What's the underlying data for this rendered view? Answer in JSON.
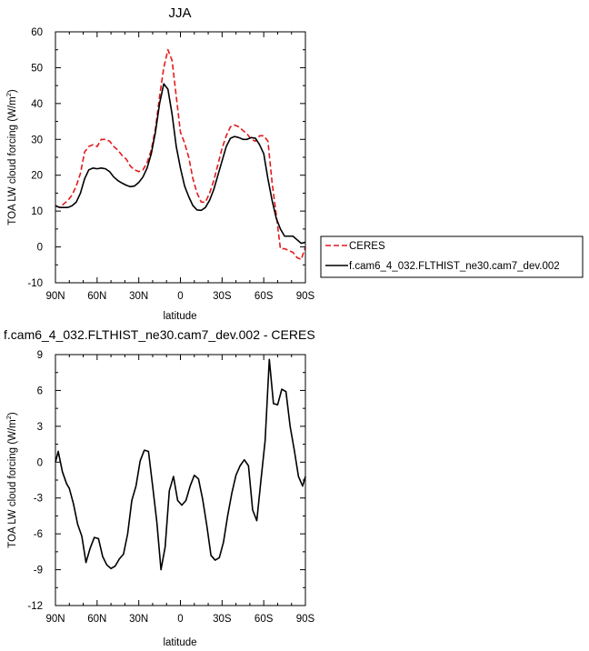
{
  "chart_data": [
    {
      "type": "line",
      "title": "JJA",
      "xlabel": "latitude",
      "ylabel": "TOA LW cloud forcing (W/m²)",
      "xlim": [
        -90,
        90
      ],
      "ylim": [
        -10,
        60
      ],
      "x_ticks": [
        -90,
        -60,
        -30,
        0,
        30,
        60,
        90
      ],
      "x_tick_labels": [
        "90N",
        "60N",
        "30N",
        "0",
        "30S",
        "60S",
        "90S"
      ],
      "y_ticks": [
        -10,
        0,
        10,
        20,
        30,
        40,
        50,
        60
      ],
      "y_tick_labels": [
        "-10",
        "0",
        "10",
        "20",
        "30",
        "40",
        "50",
        "60"
      ],
      "legend_position": "right, outside plot",
      "series": [
        {
          "name": "CERES",
          "color": "#e41a1c",
          "dash": "dashed",
          "x": [
            -90,
            -87,
            -84,
            -81,
            -78,
            -75,
            -72,
            -69,
            -66,
            -63,
            -60,
            -57,
            -54,
            -51,
            -48,
            -45,
            -42,
            -39,
            -36,
            -33,
            -30,
            -27,
            -24,
            -21,
            -18,
            -15,
            -12,
            -9,
            -6,
            -3,
            0,
            3,
            6,
            9,
            12,
            15,
            18,
            21,
            24,
            27,
            30,
            33,
            36,
            39,
            42,
            45,
            48,
            51,
            54,
            57,
            60,
            63,
            66,
            69,
            72,
            75,
            78,
            81,
            84,
            87,
            90
          ],
          "y": [
            11.5,
            11,
            12,
            13,
            14.5,
            17,
            20.5,
            26.5,
            28,
            28.5,
            28,
            30,
            30,
            29.5,
            28,
            27,
            25.5,
            24.5,
            22.5,
            21.5,
            21,
            21.5,
            23.5,
            27,
            33,
            42,
            50,
            55,
            52,
            42,
            32,
            29,
            25,
            19,
            15,
            12.5,
            12.5,
            15,
            18.5,
            23,
            27.5,
            31,
            33.5,
            34,
            33.5,
            32.5,
            31.5,
            30,
            29.5,
            31,
            31,
            29.5,
            18,
            9,
            -0.5,
            -0.5,
            -1,
            -1.5,
            -3,
            -3.5,
            0
          ]
        },
        {
          "name": "f.cam6_4_032.FLTHIST_ne30.cam7_dev.002",
          "color": "#000000",
          "dash": "solid",
          "x": [
            -90,
            -87,
            -84,
            -81,
            -78,
            -75,
            -72,
            -69,
            -66,
            -63,
            -60,
            -57,
            -54,
            -51,
            -48,
            -45,
            -42,
            -39,
            -36,
            -33,
            -30,
            -27,
            -24,
            -21,
            -18,
            -15,
            -12,
            -9,
            -6,
            -3,
            0,
            3,
            6,
            9,
            12,
            15,
            18,
            21,
            24,
            27,
            30,
            33,
            36,
            39,
            42,
            45,
            48,
            51,
            54,
            57,
            60,
            63,
            66,
            69,
            72,
            75,
            78,
            81,
            84,
            87,
            90
          ],
          "y": [
            11.5,
            11,
            11,
            11,
            11.5,
            12.5,
            15,
            19,
            21.5,
            22,
            21.8,
            22,
            21.8,
            21,
            19.5,
            18.5,
            17.8,
            17.2,
            16.8,
            17,
            18,
            19.5,
            22,
            26,
            32,
            40,
            45.5,
            44,
            37,
            28,
            22,
            17,
            14,
            11.5,
            10.3,
            10.2,
            11,
            13,
            16,
            20,
            24,
            28,
            30.3,
            30.8,
            30.5,
            30,
            30,
            30.5,
            30.3,
            28.5,
            26,
            19,
            13,
            8,
            5,
            3,
            3,
            3,
            2,
            1,
            1.3
          ]
        }
      ]
    },
    {
      "type": "line",
      "title": "f.cam6_4_032.FLTHIST_ne30.cam7_dev.002 - CERES",
      "xlabel": "latitude",
      "ylabel": "TOA LW cloud forcing (W/m²)",
      "xlim": [
        -90,
        90
      ],
      "ylim": [
        -12,
        9
      ],
      "x_ticks": [
        -90,
        -60,
        -30,
        0,
        30,
        60,
        90
      ],
      "x_tick_labels": [
        "90N",
        "60N",
        "30N",
        "0",
        "30S",
        "60S",
        "90S"
      ],
      "y_ticks": [
        -12,
        -9,
        -6,
        -3,
        0,
        3,
        6,
        9
      ],
      "y_tick_labels": [
        "-12",
        "-9",
        "-6",
        "-3",
        "0",
        "3",
        "6",
        "9"
      ],
      "series": [
        {
          "color": "#000000",
          "dash": "solid",
          "x": [
            -90,
            -88,
            -85,
            -82,
            -80,
            -77,
            -74,
            -71,
            -68,
            -65,
            -62,
            -59,
            -56,
            -53,
            -50,
            -47,
            -44,
            -41,
            -38,
            -35,
            -32,
            -29,
            -26,
            -23,
            -20,
            -17,
            -14,
            -11,
            -8,
            -5,
            -2,
            1,
            4,
            7,
            10,
            13,
            16,
            19,
            22,
            25,
            28,
            31,
            34,
            37,
            40,
            43,
            46,
            49,
            52,
            55,
            58,
            61,
            64,
            67,
            70,
            73,
            76,
            79,
            82,
            85,
            88,
            90
          ],
          "y": [
            0,
            0.9,
            -0.8,
            -1.8,
            -2.2,
            -3.5,
            -5.2,
            -6.2,
            -8.4,
            -7.2,
            -6.3,
            -6.4,
            -7.9,
            -8.6,
            -8.9,
            -8.7,
            -8.1,
            -7.7,
            -6,
            -3.2,
            -2,
            0.1,
            1,
            0.9,
            -2,
            -5,
            -9,
            -7.1,
            -2.4,
            -1.2,
            -3.2,
            -3.6,
            -3.2,
            -2,
            -1.1,
            -1.4,
            -3.1,
            -5.3,
            -7.8,
            -8.2,
            -8,
            -6.7,
            -4.5,
            -2.6,
            -1.1,
            -0.3,
            0.2,
            -0.3,
            -4,
            -4.9,
            -1.5,
            1.8,
            8.6,
            4.9,
            4.8,
            6.1,
            5.9,
            3,
            1,
            -1.2,
            -2,
            -1.2
          ]
        }
      ]
    }
  ]
}
